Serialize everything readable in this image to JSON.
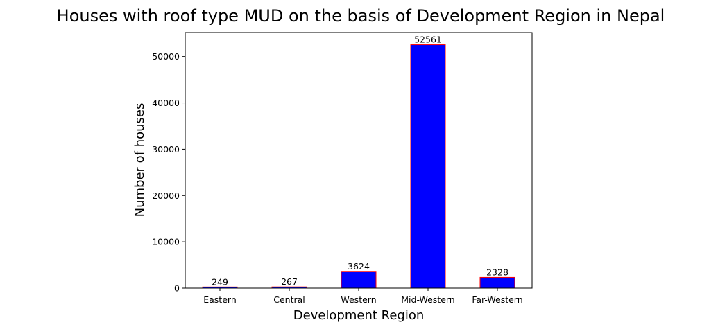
{
  "chart_data": {
    "type": "bar",
    "title": "Houses with roof type MUD on the basis of Development Region in Nepal",
    "xlabel": "Development Region",
    "ylabel": "Number of houses",
    "categories": [
      "Eastern",
      "Central",
      "Western",
      "Mid-Western",
      "Far-Western"
    ],
    "values": [
      249,
      267,
      3624,
      52561,
      2328
    ],
    "data_labels": [
      "249",
      "267",
      "3624",
      "52561",
      "2328"
    ],
    "ylim": [
      0,
      55187
    ],
    "yticks": [
      0,
      10000,
      20000,
      30000,
      40000,
      50000
    ],
    "ytick_labels": [
      "0",
      "10000",
      "20000",
      "30000",
      "40000",
      "50000"
    ],
    "grid": false,
    "bar_color": "#0000ff",
    "edge_color": "#ff0000"
  }
}
